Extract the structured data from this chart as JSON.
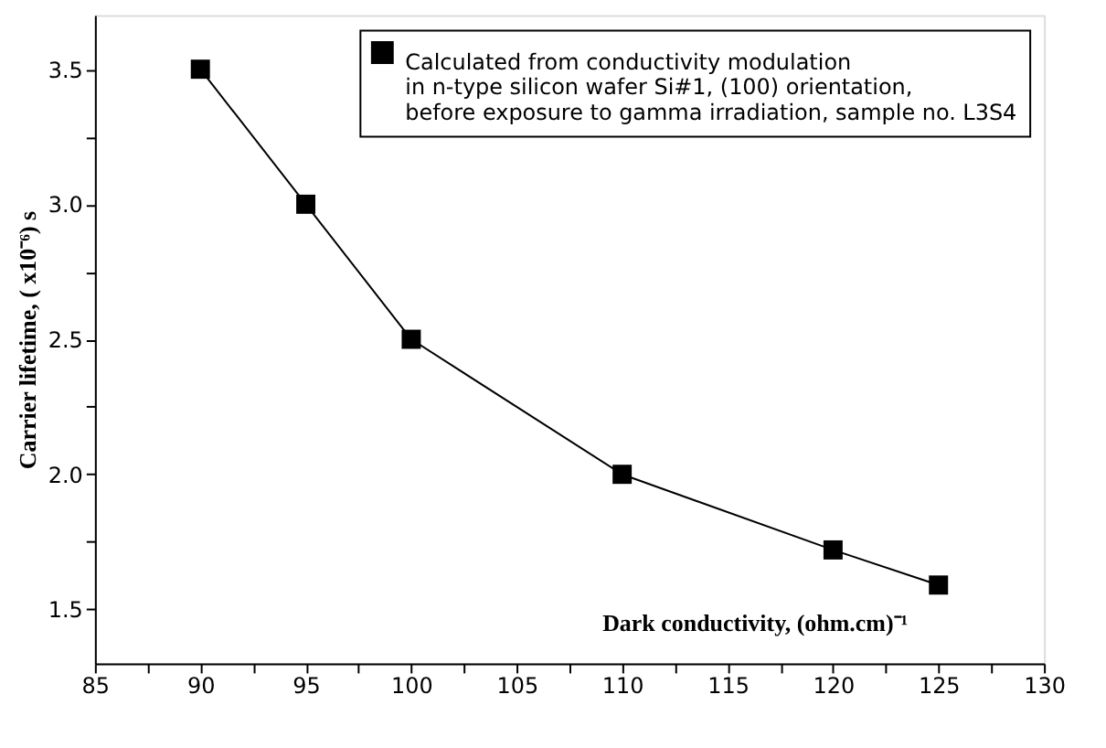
{
  "chart_data": {
    "type": "line",
    "xlabel": "Dark conductivity, (ohm.cm)⁻¹",
    "ylabel": "Carrier lifetime, ( x10⁻⁶) s",
    "x": [
      90,
      95,
      100,
      110,
      120,
      125
    ],
    "series": [
      {
        "name": "Calculated from conductivity modulation\nin n-type silicon wafer Si#1, (100) orientation,\nbefore exposure to gamma irradiation, sample no. L3S4",
        "color": "#000000",
        "values": [
          3.5,
          3.0,
          2.5,
          2.0,
          1.72,
          1.59
        ]
      }
    ],
    "xlim": [
      85,
      130
    ],
    "xticks": [
      85,
      {
        "value": 87.5,
        "label": null
      },
      90,
      {
        "value": 92.5,
        "label": null
      },
      95,
      {
        "value": 97.5,
        "label": null
      },
      100,
      {
        "value": 102.5,
        "label": null
      },
      105,
      {
        "value": 107.5,
        "label": null
      },
      110,
      {
        "value": 112.5,
        "label": null
      },
      115,
      {
        "value": 117.5,
        "label": null
      },
      120,
      {
        "value": 122.5,
        "label": null
      },
      125,
      {
        "value": 127.5,
        "label": null
      },
      130
    ],
    "ylim": [
      1.3,
      3.7
    ],
    "yticks": [
      1.5,
      {
        "value": 1.75,
        "label": null
      },
      {
        "value": 2,
        "label": "2.0"
      },
      {
        "value": 2.25,
        "label": null
      },
      2.5,
      {
        "value": 2.75,
        "label": null
      },
      {
        "value": 3,
        "label": "3.0"
      },
      {
        "value": 3.25,
        "label": null
      },
      3.5
    ],
    "marker": "square",
    "line_style": "solid",
    "grid": false,
    "legend": "top right"
  }
}
